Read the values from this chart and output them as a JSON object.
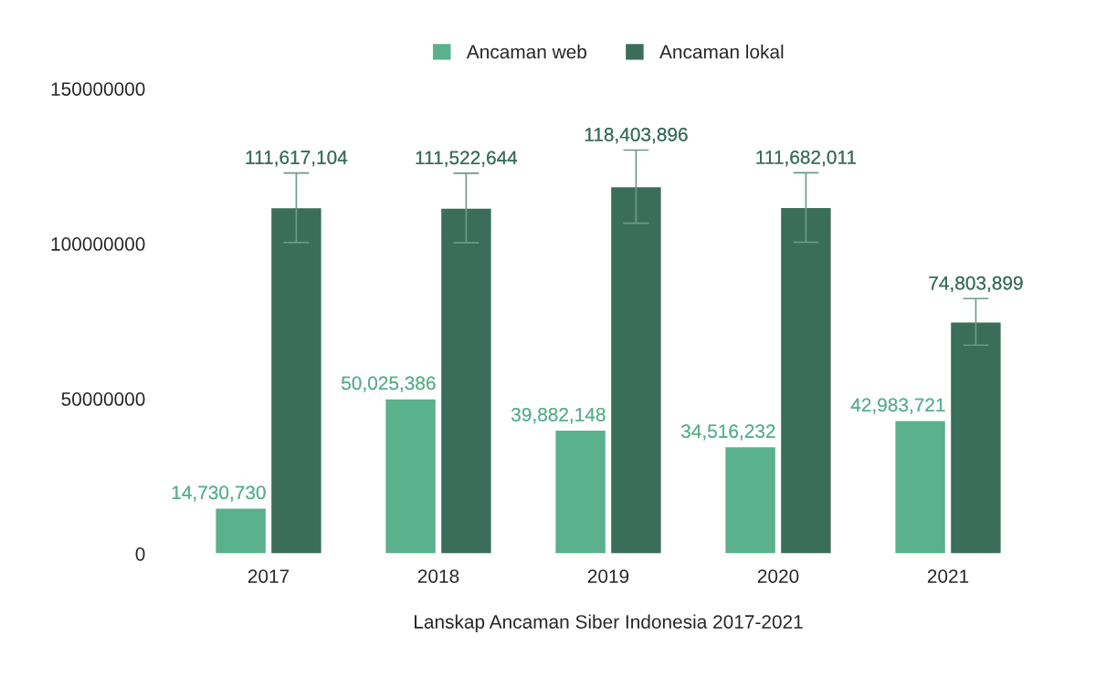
{
  "chart_data": {
    "type": "bar",
    "xlabel": "Lanskap Ancaman Siber Indonesia 2017-2021",
    "categories": [
      "2017",
      "2018",
      "2019",
      "2020",
      "2021"
    ],
    "series": [
      {
        "name": "Ancaman web",
        "color": "#5bb08e",
        "values": [
          14730730,
          50025386,
          39882148,
          34516232,
          42983721
        ],
        "value_labels": [
          "14,730,730",
          "50,025,386",
          "39,882,148",
          "34,516,232",
          "42,983,721"
        ]
      },
      {
        "name": "Ancaman lokal",
        "color": "#3a6e5b",
        "values": [
          111617104,
          111522644,
          118403896,
          111682011,
          74803899
        ],
        "errors": [
          11200000,
          11200000,
          11800000,
          11200000,
          7500000
        ],
        "value_labels": [
          "111,617,104",
          "111,522,644",
          "118,403,896",
          "111,682,011",
          "74,803,899"
        ]
      }
    ],
    "ylim": [
      0,
      150000000
    ],
    "yticks": [
      0,
      50000000,
      100000000,
      150000000
    ],
    "legend": "top",
    "grid": false
  }
}
